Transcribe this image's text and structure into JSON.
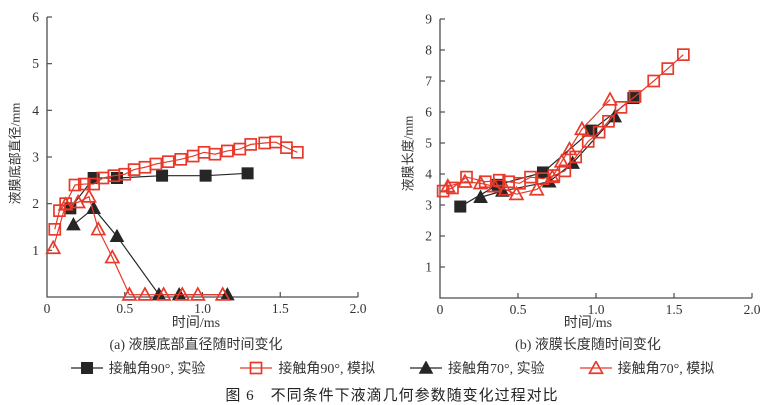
{
  "figure": {
    "caption": "图 6　不同条件下液滴几何参数随变化过程对比"
  },
  "colors": {
    "experiment_black": "#262626",
    "simulation_red": "#e8392a",
    "axis": "#4d4d4d",
    "text": "#333333"
  },
  "legend": {
    "items": [
      {
        "label": "接触角90°, 实验",
        "marker": "square",
        "fill": "filled",
        "color": "#262626"
      },
      {
        "label": "接触角90°, 模拟",
        "marker": "square",
        "fill": "open",
        "color": "#e8392a"
      },
      {
        "label": "接触角70°, 实验",
        "marker": "triangle",
        "fill": "filled",
        "color": "#262626"
      },
      {
        "label": "接触角70°, 模拟",
        "marker": "triangle",
        "fill": "open",
        "color": "#e8392a"
      }
    ]
  },
  "chart_data": [
    {
      "type": "line",
      "subcaption": "(a) 液膜底部直径随时间变化",
      "xlabel": "时间/ms",
      "ylabel": "液膜底部直径/mm",
      "xlim": [
        0,
        2.0
      ],
      "ylim": [
        0,
        6
      ],
      "xticks": [
        0,
        0.5,
        1.0,
        1.5,
        2.0
      ],
      "xtick_labels": [
        "0",
        "0.5",
        "1.0",
        "1.5",
        "2.0"
      ],
      "yticks": [
        1,
        2,
        3,
        4,
        5,
        6
      ],
      "grid": false,
      "legend_position": "below-figure",
      "series": [
        {
          "name": "接触角90°, 实验",
          "marker": "square",
          "fill": "filled",
          "color": "#262626",
          "points": [
            [
              0.15,
              1.9
            ],
            [
              0.3,
              2.55
            ],
            [
              0.45,
              2.55
            ],
            [
              0.74,
              2.6
            ],
            [
              1.02,
              2.6
            ],
            [
              1.29,
              2.65
            ]
          ]
        },
        {
          "name": "接触角70°, 实验",
          "marker": "triangle",
          "fill": "filled",
          "color": "#262626",
          "points": [
            [
              0.17,
              1.55
            ],
            [
              0.3,
              1.9
            ],
            [
              0.45,
              1.3
            ],
            [
              0.72,
              0.05
            ],
            [
              0.85,
              0.05
            ],
            [
              1.16,
              0.05
            ]
          ]
        },
        {
          "name": "接触角90°, 模拟",
          "marker": "square",
          "fill": "open",
          "color": "#e8392a",
          "points": [
            [
              0.05,
              1.45
            ],
            [
              0.08,
              1.85
            ],
            [
              0.12,
              2.0
            ],
            [
              0.18,
              2.4
            ],
            [
              0.24,
              2.42
            ],
            [
              0.3,
              2.42
            ],
            [
              0.36,
              2.55
            ],
            [
              0.43,
              2.6
            ],
            [
              0.5,
              2.63
            ],
            [
              0.56,
              2.73
            ],
            [
              0.63,
              2.78
            ],
            [
              0.7,
              2.85
            ],
            [
              0.78,
              2.9
            ],
            [
              0.86,
              2.95
            ],
            [
              0.94,
              3.02
            ],
            [
              1.01,
              3.1
            ],
            [
              1.08,
              3.06
            ],
            [
              1.16,
              3.13
            ],
            [
              1.24,
              3.17
            ],
            [
              1.31,
              3.27
            ],
            [
              1.4,
              3.3
            ],
            [
              1.47,
              3.32
            ],
            [
              1.54,
              3.2
            ],
            [
              1.61,
              3.1
            ]
          ]
        },
        {
          "name": "接触角70°, 模拟",
          "marker": "triangle",
          "fill": "open",
          "color": "#e8392a",
          "points": [
            [
              0.04,
              1.05
            ],
            [
              0.12,
              1.98
            ],
            [
              0.2,
              2.03
            ],
            [
              0.27,
              2.15
            ],
            [
              0.33,
              1.45
            ],
            [
              0.42,
              0.85
            ],
            [
              0.53,
              0.05
            ],
            [
              0.63,
              0.05
            ],
            [
              0.75,
              0.05
            ],
            [
              0.87,
              0.05
            ],
            [
              0.97,
              0.05
            ],
            [
              1.13,
              0.05
            ]
          ]
        }
      ]
    },
    {
      "type": "line",
      "subcaption": "(b) 液膜长度随时间变化",
      "xlabel": "时间/ms",
      "ylabel": "液膜长度/mm",
      "xlim": [
        0,
        2.0
      ],
      "ylim": [
        0,
        9
      ],
      "xticks": [
        0,
        0.5,
        1.0,
        1.5,
        2.0
      ],
      "xtick_labels": [
        "0",
        "0.5",
        "1.0",
        "1.5",
        "2.0"
      ],
      "yticks": [
        1,
        2,
        3,
        4,
        5,
        6,
        7,
        8,
        9
      ],
      "grid": false,
      "legend_position": "below-figure",
      "series": [
        {
          "name": "接触角90°, 实验",
          "marker": "square",
          "fill": "filled",
          "color": "#262626",
          "points": [
            [
              0.13,
              2.95
            ],
            [
              0.37,
              3.65
            ],
            [
              0.66,
              4.05
            ],
            [
              0.97,
              5.4
            ],
            [
              1.24,
              6.45
            ]
          ]
        },
        {
          "name": "接触角70°, 实验",
          "marker": "triangle",
          "fill": "filled",
          "color": "#262626",
          "points": [
            [
              0.26,
              3.25
            ],
            [
              0.4,
              3.45
            ],
            [
              0.7,
              3.75
            ],
            [
              0.85,
              4.35
            ],
            [
              1.12,
              5.85
            ]
          ]
        },
        {
          "name": "接触角90°, 模拟",
          "marker": "square",
          "fill": "open",
          "color": "#e8392a",
          "points": [
            [
              0.02,
              3.45
            ],
            [
              0.08,
              3.55
            ],
            [
              0.17,
              3.9
            ],
            [
              0.29,
              3.75
            ],
            [
              0.38,
              3.8
            ],
            [
              0.44,
              3.75
            ],
            [
              0.51,
              3.7
            ],
            [
              0.58,
              3.9
            ],
            [
              0.66,
              3.85
            ],
            [
              0.73,
              3.95
            ],
            [
              0.8,
              4.1
            ],
            [
              0.87,
              4.55
            ],
            [
              0.95,
              5.05
            ],
            [
              1.02,
              5.35
            ],
            [
              1.08,
              5.7
            ],
            [
              1.16,
              6.15
            ],
            [
              1.25,
              6.5
            ],
            [
              1.37,
              7.0
            ],
            [
              1.46,
              7.4
            ],
            [
              1.56,
              7.85
            ]
          ]
        },
        {
          "name": "接触角70°, 模拟",
          "marker": "triangle",
          "fill": "open",
          "color": "#e8392a",
          "points": [
            [
              0.05,
              3.6
            ],
            [
              0.16,
              3.75
            ],
            [
              0.26,
              3.7
            ],
            [
              0.35,
              3.6
            ],
            [
              0.42,
              3.5
            ],
            [
              0.49,
              3.35
            ],
            [
              0.62,
              3.5
            ],
            [
              0.72,
              3.9
            ],
            [
              0.78,
              4.4
            ],
            [
              0.83,
              4.8
            ],
            [
              0.91,
              5.45
            ],
            [
              1.09,
              6.4
            ]
          ]
        }
      ]
    }
  ]
}
